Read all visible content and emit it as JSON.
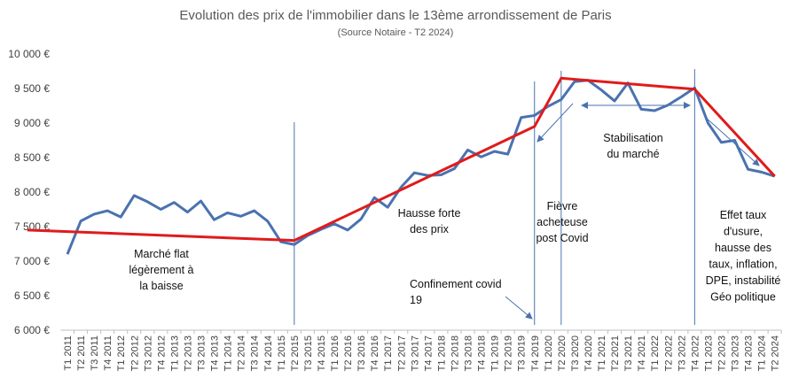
{
  "chart_data": {
    "type": "line",
    "title": "Evolution des prix de l'immobilier dans le 13ème arrondissement de Paris",
    "subtitle": "(Source Notaire - T2 2024)",
    "xlabel": "",
    "ylabel": "",
    "ylim": [
      6000,
      10000
    ],
    "y_ticks": [
      6000,
      6500,
      7000,
      7500,
      8000,
      8500,
      9000,
      9500,
      10000
    ],
    "y_tick_labels": [
      "6 000 €",
      "6 500 €",
      "7 000 €",
      "7 500 €",
      "8 000 €",
      "8 500 €",
      "9 000 €",
      "9 500 €",
      "10 000 €"
    ],
    "categories": [
      "T1 2011",
      "T2 2011",
      "T3 2011",
      "T4 2011",
      "T1 2012",
      "T2 2012",
      "T3 2012",
      "T4 2012",
      "T1 2013",
      "T2 2013",
      "T3 2013",
      "T4 2013",
      "T1 2014",
      "T2 2014",
      "T3 2014",
      "T4 2014",
      "T1 2015",
      "T2 2015",
      "T3 2015",
      "T4 2015",
      "T1 2016",
      "T2 2016",
      "T3 2016",
      "T4 2016",
      "T1 2017",
      "T2 2017",
      "T3 2017",
      "T4 2017",
      "T1 2018",
      "T2 2018",
      "T3 2018",
      "T4 2018",
      "T1 2019",
      "T2 2019",
      "T3 2019",
      "T4 2019",
      "T1 2020",
      "T2 2020",
      "T3 2020",
      "T4 2020",
      "T1 2021",
      "T2 2021",
      "T3 2021",
      "T4 2021",
      "T1 2022",
      "T2 2022",
      "T3 2022",
      "T4 2022",
      "T1 2023",
      "T2 2023",
      "T3 2023",
      "T4 2023",
      "T1 2024",
      "T2 2024"
    ],
    "series": [
      {
        "values": [
          7100,
          7580,
          7680,
          7730,
          7640,
          7950,
          7860,
          7750,
          7850,
          7710,
          7870,
          7600,
          7700,
          7650,
          7730,
          7580,
          7280,
          7240,
          7370,
          7460,
          7540,
          7450,
          7610,
          7920,
          7780,
          8070,
          8280,
          8240,
          8250,
          8340,
          8610,
          8510,
          8590,
          8550,
          9080,
          9110,
          9240,
          9340,
          9600,
          9620,
          9480,
          9320,
          9580,
          9200,
          9180,
          9260,
          9380,
          9510,
          9000,
          8720,
          8750,
          8330,
          8290,
          8230
        ],
        "color": "#4a72b0"
      },
      {
        "trend_points": [
          [
            "T2 2010",
            7450
          ],
          [
            "T2 2015",
            7300
          ],
          [
            "T4 2019",
            8950
          ],
          [
            "T2 2020",
            9650
          ],
          [
            "T4 2022",
            9490
          ],
          [
            "T2 2024",
            8230
          ]
        ],
        "color": "#e01b1b"
      }
    ],
    "vertical_markers": [
      "T2 2015",
      "T4 2019",
      "T2 2020",
      "T4 2022"
    ],
    "annotations": [
      {
        "lines": [
          "Marché flat",
          "légèrement à",
          "la baisse"
        ]
      },
      {
        "lines": [
          "Hausse forte",
          "des prix"
        ]
      },
      {
        "lines": [
          "Confinement covid",
          "19"
        ]
      },
      {
        "lines": [
          "Fièvre",
          "acheteuse",
          "post Covid"
        ]
      },
      {
        "lines": [
          "Stabilisation",
          "du marché"
        ]
      },
      {
        "lines": [
          "Effet taux",
          "d'usure,",
          "hausse des",
          "taux, inflation,",
          "DPE, instabilité",
          "Géo politique"
        ]
      }
    ],
    "grid": false,
    "legend": "none"
  }
}
